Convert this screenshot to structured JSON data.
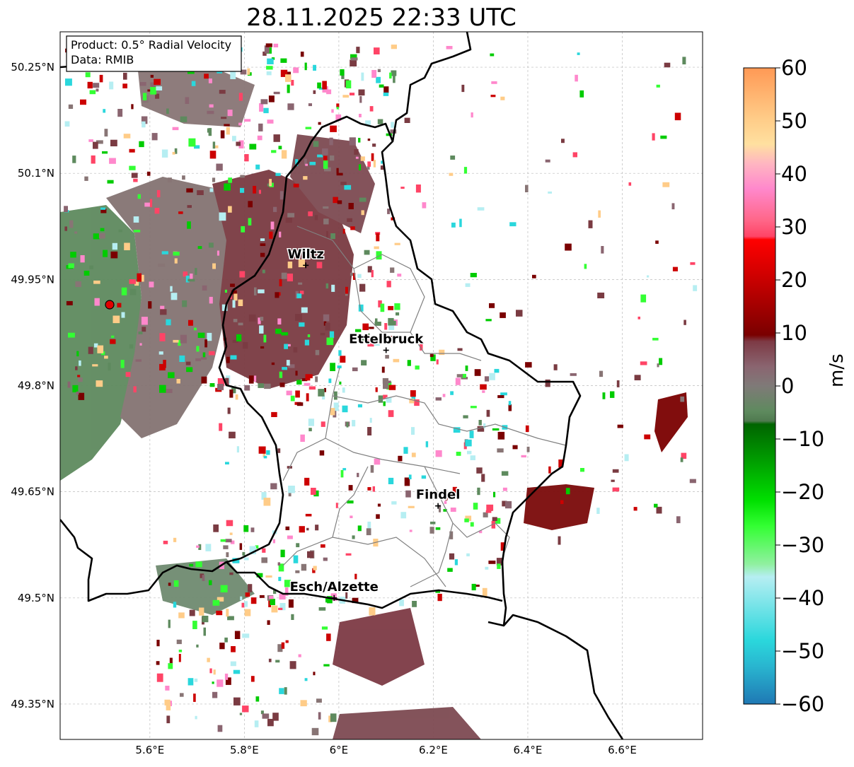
{
  "title": "28.11.2025 22:33 UTC",
  "info_box": {
    "line1": "Product: 0.5° Radial Velocity",
    "line2": "Data: RMIB"
  },
  "map": {
    "lon_range": [
      5.41,
      6.77
    ],
    "lat_range": [
      49.3,
      50.3
    ],
    "lon_ticks": [
      {
        "value": 5.6,
        "label": "5.6°E"
      },
      {
        "value": 5.8,
        "label": "5.8°E"
      },
      {
        "value": 6.0,
        "label": "6°E"
      },
      {
        "value": 6.2,
        "label": "6.2°E"
      },
      {
        "value": 6.4,
        "label": "6.4°E"
      },
      {
        "value": 6.6,
        "label": "6.6°E"
      }
    ],
    "lat_ticks": [
      {
        "value": 50.25,
        "label": "50.25°N"
      },
      {
        "value": 50.1,
        "label": "50.1°N"
      },
      {
        "value": 49.95,
        "label": "49.95°N"
      },
      {
        "value": 49.8,
        "label": "49.8°N"
      },
      {
        "value": 49.65,
        "label": "49.65°N"
      },
      {
        "value": 49.5,
        "label": "49.5°N"
      },
      {
        "value": 49.35,
        "label": "49.35°N"
      }
    ],
    "grid": true,
    "cities": [
      {
        "name": "Wiltz",
        "lon": 5.93,
        "lat": 49.97
      },
      {
        "name": "Ettelbruck",
        "lon": 6.1,
        "lat": 49.85
      },
      {
        "name": "Findel",
        "lon": 6.21,
        "lat": 49.63
      },
      {
        "name": "Esch/Alzette",
        "lon": 5.99,
        "lat": 49.5
      }
    ],
    "radar_site": {
      "lon": 5.51,
      "lat": 49.92
    }
  },
  "colorbar": {
    "label": "m/s",
    "range": [
      -60,
      60
    ],
    "ticks": [
      "60",
      "50",
      "40",
      "30",
      "20",
      "10",
      "0",
      "−10",
      "−20",
      "−30",
      "−40",
      "−50",
      "−60"
    ],
    "colors": {
      "neg60": "#1f78b4",
      "neg50": "#2ad7dc",
      "neg40": "#b6eef2",
      "neg30": "#33ff33",
      "neg20": "#00cc00",
      "neg10": "#006400",
      "zero_low": "#5e8a5e",
      "zero": "#8a7575",
      "pos10": "#7a0000",
      "pos20": "#cc0000",
      "pos30": "#ff4466",
      "pos40": "#ff88cc",
      "pos50": "#ffcc88",
      "pos60": "#ff9955"
    }
  }
}
